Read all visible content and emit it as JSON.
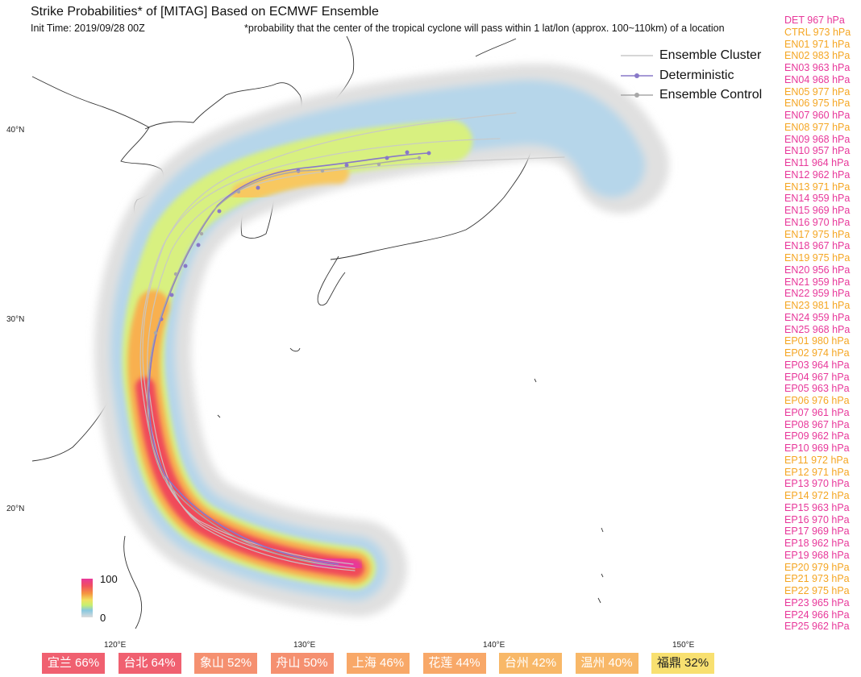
{
  "header": {
    "title": "Strike Probabilities* of [MITAG] Based on ECMWF Ensemble",
    "init_time": "Init Time: 2019/09/28 00Z",
    "footnote": "*probability that the center of the tropical cyclone will pass within 1 lat/lon (approx. 100~110km) of a location"
  },
  "legend": {
    "items": [
      {
        "label": "Ensemble Cluster",
        "color": "#c8c8c8",
        "marker": false
      },
      {
        "label": "Deterministic",
        "color": "#8878c8",
        "marker": true
      },
      {
        "label": "Ensemble Control",
        "color": "#a8a8a8",
        "marker": true
      }
    ]
  },
  "pressures": [
    {
      "label": "DET 967 hPa",
      "color": "#e8389a"
    },
    {
      "label": "CTRL 973 hPa",
      "color": "#f5a623"
    },
    {
      "label": "EN01 971 hPa",
      "color": "#f5a623"
    },
    {
      "label": "EN02 983 hPa",
      "color": "#f5a623"
    },
    {
      "label": "EN03 963 hPa",
      "color": "#e8389a"
    },
    {
      "label": "EN04 968 hPa",
      "color": "#e8389a"
    },
    {
      "label": "EN05 977 hPa",
      "color": "#f5a623"
    },
    {
      "label": "EN06 975 hPa",
      "color": "#f5a623"
    },
    {
      "label": "EN07 960 hPa",
      "color": "#e8389a"
    },
    {
      "label": "EN08 977 hPa",
      "color": "#f5a623"
    },
    {
      "label": "EN09 968 hPa",
      "color": "#e8389a"
    },
    {
      "label": "EN10 957 hPa",
      "color": "#e8389a"
    },
    {
      "label": "EN11 964 hPa",
      "color": "#e8389a"
    },
    {
      "label": "EN12 962 hPa",
      "color": "#e8389a"
    },
    {
      "label": "EN13 971 hPa",
      "color": "#f5a623"
    },
    {
      "label": "EN14 959 hPa",
      "color": "#e8389a"
    },
    {
      "label": "EN15 969 hPa",
      "color": "#e8389a"
    },
    {
      "label": "EN16 970 hPa",
      "color": "#e8389a"
    },
    {
      "label": "EN17 975 hPa",
      "color": "#f5a623"
    },
    {
      "label": "EN18 967 hPa",
      "color": "#e8389a"
    },
    {
      "label": "EN19 975 hPa",
      "color": "#f5a623"
    },
    {
      "label": "EN20 956 hPa",
      "color": "#e8389a"
    },
    {
      "label": "EN21 959 hPa",
      "color": "#e8389a"
    },
    {
      "label": "EN22 959 hPa",
      "color": "#e8389a"
    },
    {
      "label": "EN23 981 hPa",
      "color": "#f5a623"
    },
    {
      "label": "EN24 959 hPa",
      "color": "#e8389a"
    },
    {
      "label": "EN25 968 hPa",
      "color": "#e8389a"
    },
    {
      "label": "EP01 980 hPa",
      "color": "#f5a623"
    },
    {
      "label": "EP02 974 hPa",
      "color": "#f5a623"
    },
    {
      "label": "EP03 964 hPa",
      "color": "#e8389a"
    },
    {
      "label": "EP04 967 hPa",
      "color": "#e8389a"
    },
    {
      "label": "EP05 963 hPa",
      "color": "#e8389a"
    },
    {
      "label": "EP06 976 hPa",
      "color": "#f5a623"
    },
    {
      "label": "EP07 961 hPa",
      "color": "#e8389a"
    },
    {
      "label": "EP08 967 hPa",
      "color": "#e8389a"
    },
    {
      "label": "EP09 962 hPa",
      "color": "#e8389a"
    },
    {
      "label": "EP10 969 hPa",
      "color": "#e8389a"
    },
    {
      "label": "EP11 972 hPa",
      "color": "#f5a623"
    },
    {
      "label": "EP12 971 hPa",
      "color": "#f5a623"
    },
    {
      "label": "EP13 970 hPa",
      "color": "#e8389a"
    },
    {
      "label": "EP14 972 hPa",
      "color": "#f5a623"
    },
    {
      "label": "EP15 963 hPa",
      "color": "#e8389a"
    },
    {
      "label": "EP16 970 hPa",
      "color": "#e8389a"
    },
    {
      "label": "EP17 969 hPa",
      "color": "#e8389a"
    },
    {
      "label": "EP18 962 hPa",
      "color": "#e8389a"
    },
    {
      "label": "EP19 968 hPa",
      "color": "#e8389a"
    },
    {
      "label": "EP20 979 hPa",
      "color": "#f5a623"
    },
    {
      "label": "EP21 973 hPa",
      "color": "#f5a623"
    },
    {
      "label": "EP22 975 hPa",
      "color": "#f5a623"
    },
    {
      "label": "EP23 965 hPa",
      "color": "#e8389a"
    },
    {
      "label": "EP24 966 hPa",
      "color": "#e8389a"
    },
    {
      "label": "EP25 962 hPa",
      "color": "#e8389a"
    }
  ],
  "axes": {
    "lat_ticks": [
      "40°N",
      "30°N",
      "20°N"
    ],
    "lon_ticks": [
      "120°E",
      "130°E",
      "140°E",
      "150°E"
    ]
  },
  "colorbar": {
    "max_label": "100",
    "min_label": "0"
  },
  "badges": [
    {
      "label": "宜兰 66%",
      "bg": "#f06070",
      "fg": "#ffffff"
    },
    {
      "label": "台北 64%",
      "bg": "#f06070",
      "fg": "#ffffff"
    },
    {
      "label": "象山 52%",
      "bg": "#f59070",
      "fg": "#ffffff"
    },
    {
      "label": "舟山 50%",
      "bg": "#f59070",
      "fg": "#ffffff"
    },
    {
      "label": "上海 46%",
      "bg": "#f8a868",
      "fg": "#ffffff"
    },
    {
      "label": "花莲 44%",
      "bg": "#f8a868",
      "fg": "#ffffff"
    },
    {
      "label": "台州 42%",
      "bg": "#f8b868",
      "fg": "#ffffff"
    },
    {
      "label": "温州 40%",
      "bg": "#f8b868",
      "fg": "#ffffff"
    },
    {
      "label": "福鼎 32%",
      "bg": "#f8e070",
      "fg": "#222222"
    }
  ]
}
